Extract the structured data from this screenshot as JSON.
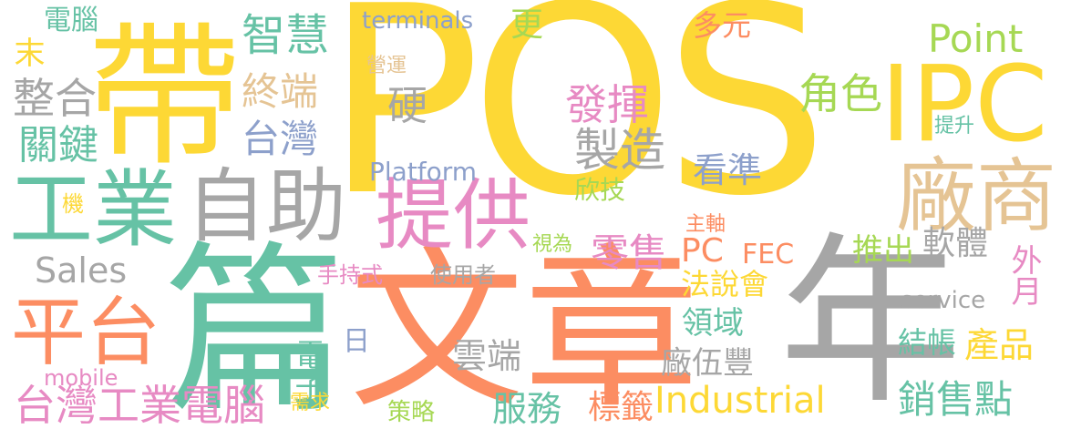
{
  "palette": {
    "yellow": "#fdd835",
    "salmon": "#fc8d62",
    "green": "#66c2a5",
    "gray": "#a6a6a6",
    "pink": "#e78ac3",
    "blue": "#8da0cb",
    "lime": "#a6d854",
    "tan": "#e5c494",
    "background": "#ffffff"
  },
  "words": {
    "pos": "POS",
    "dai": "帶",
    "pian": "篇",
    "wenzhang": "文章",
    "nian": "年",
    "ipc": "IPC",
    "tigong": "提供",
    "gongye_big": "工業",
    "zizhu": "自助",
    "changshang": "廠商",
    "pingtai": "平台",
    "lingshou": "零售",
    "zhizao": "製造",
    "fahui": "發揮",
    "jiaose": "角色",
    "point": "Point",
    "zhihui": "智慧",
    "zhongduan": "終端",
    "taiwan": "台灣",
    "zhenghe": "整合",
    "guanjian": "關鍵",
    "ying": "硬",
    "sales": "Sales",
    "platform": "Platform",
    "kanzhun": "看準",
    "xinji": "欣技",
    "terminals": "terminals",
    "geng": "更",
    "duoyuan": "多元",
    "diannao_top": "電腦",
    "mo": "末",
    "yingyun": "營運",
    "tisheng": "提升",
    "ji": "機",
    "zhuzhou": "主軸",
    "shiwei": "視為",
    "pc": "PC",
    "fec": "FEC",
    "tuichu": "推出",
    "ruanti": "軟體",
    "waiyue": "外月",
    "fashuohui": "法說會",
    "service": "service",
    "shouchishi": "手持式",
    "shiyongzhe": "使用者",
    "lingyu": "領域",
    "jiezhang": "結帳",
    "chanpin": "產品",
    "ri": "日",
    "dianzi": "電子",
    "yunduan": "雲端",
    "changwufeng": "廠伍豐",
    "mobile": "mobile",
    "taiwan_long": "台灣工業電腦",
    "industrial": "Industrial",
    "xuqiu": "需求",
    "celue": "策略",
    "fuwu": "服務",
    "biaoqian": "標籤",
    "xiaoshoudian": "銷售點"
  }
}
